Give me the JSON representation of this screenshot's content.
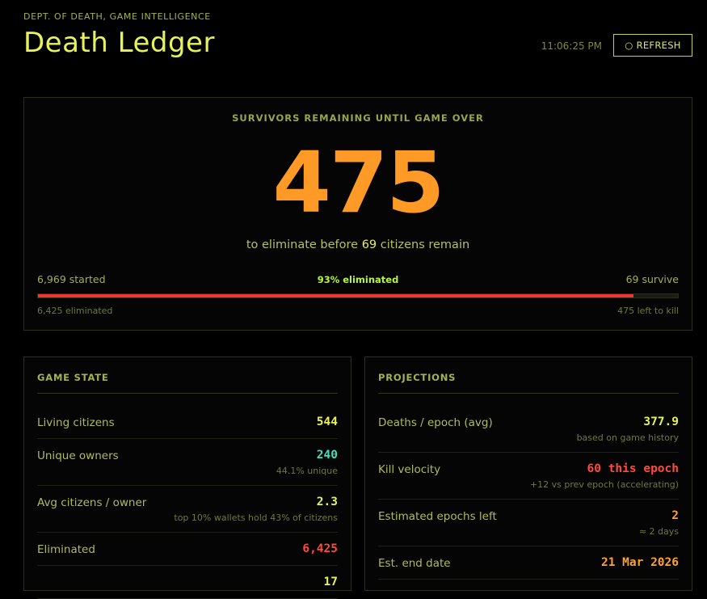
{
  "header": {
    "dept": "DEPT. OF DEATH, GAME INTELLIGENCE",
    "title": "Death Ledger",
    "time": "11:06:25 PM",
    "refresh_icon": "refresh-icon",
    "refresh_glyph": "○",
    "refresh_label": "REFRESH"
  },
  "hero": {
    "label": "SURVIVORS REMAINING UNTIL GAME OVER",
    "value": "475",
    "sub_prefix": "to eliminate before",
    "sub_count": "69",
    "sub_suffix": "citizens remain",
    "started": "6,969 started",
    "pct_eliminated": "93% eliminated",
    "survive": "69 survive",
    "eliminated": "6,425 eliminated",
    "left_to_kill": "475 left to kill",
    "progress_fraction": 0.93
  },
  "game_state": {
    "title": "GAME STATE",
    "rows": [
      {
        "label": "Living citizens",
        "value": "544",
        "note": ""
      },
      {
        "label": "Unique owners",
        "value": "240",
        "note": "44.1% unique"
      },
      {
        "label": "Avg citizens / owner",
        "value": "2.3",
        "note": "top 10% wallets hold 43% of citizens"
      },
      {
        "label": "Eliminated",
        "value": "6,425",
        "note": ""
      },
      {
        "label": "",
        "value": "17",
        "note": ""
      }
    ]
  },
  "projections": {
    "title": "PROJECTIONS",
    "rows": [
      {
        "label": "Deaths / epoch (avg)",
        "value": "377.9",
        "note": "based on game history"
      },
      {
        "label": "Kill velocity",
        "value": "60 this epoch",
        "note": "+12 vs prev epoch (accelerating)"
      },
      {
        "label": "Estimated epochs left",
        "value": "2",
        "note": "≈ 2 days"
      },
      {
        "label": "Est. end date",
        "value": "21 Mar 2026",
        "note": ""
      }
    ]
  },
  "colors": {
    "accent": "#e6f25a",
    "hero_number": "#ff9a26",
    "bar_fill": "#f0352f",
    "teal": "#41e0b6",
    "red": "#ff4a3d"
  }
}
